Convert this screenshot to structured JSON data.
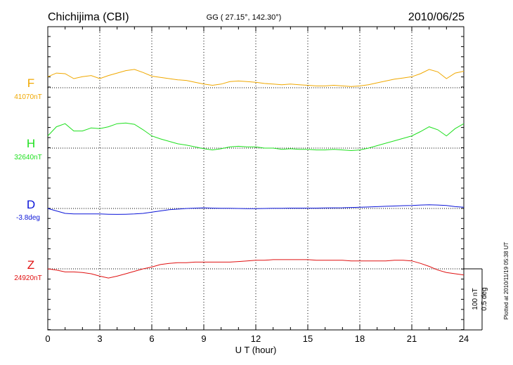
{
  "header": {
    "station": "Chichijima (CBI)",
    "coords": "GG ( 27.15°, 142.30°)",
    "date": "2010/06/25"
  },
  "plotted_note": "Plotted at 2010/11/19 05:38 UT",
  "scale_labels": [
    "100 nT",
    "0.5 deg"
  ],
  "chart_data": {
    "type": "line",
    "xlabel": "U T (hour)",
    "xlim": [
      0,
      24
    ],
    "xticks": [
      0,
      3,
      6,
      9,
      12,
      15,
      18,
      21,
      24
    ],
    "xtick_labels": [
      "0",
      "3",
      "6",
      "9",
      "12",
      "15",
      "18",
      "21",
      "24"
    ],
    "scale_bar": {
      "nT": 100,
      "deg": 0.5
    },
    "series": [
      {
        "name": "F",
        "baseline_label": "41070nT",
        "color": "#f0a800",
        "unit": "nT",
        "baseline": 41070,
        "x": [
          0,
          0.5,
          1,
          1.5,
          2,
          2.5,
          3,
          3.5,
          4,
          4.5,
          5,
          5.5,
          6,
          6.5,
          7,
          7.5,
          8,
          8.5,
          9,
          9.5,
          10,
          10.5,
          11,
          11.5,
          12,
          12.5,
          13,
          13.5,
          14,
          14.5,
          15,
          15.5,
          16,
          16.5,
          17,
          17.5,
          18,
          18.5,
          19,
          19.5,
          20,
          20.5,
          21,
          21.5,
          22,
          22.5,
          23,
          23.5,
          24
        ],
        "values": [
          41088,
          41094,
          41093,
          41085,
          41088,
          41090,
          41085,
          41090,
          41094,
          41098,
          41100,
          41095,
          41089,
          41087,
          41085,
          41083,
          41082,
          41079,
          41076,
          41074,
          41076,
          41080,
          41081,
          41080,
          41079,
          41077,
          41076,
          41075,
          41076,
          41075,
          41074,
          41073,
          41073,
          41074,
          41073,
          41072,
          41073,
          41075,
          41078,
          41081,
          41084,
          41086,
          41088,
          41093,
          41100,
          41096,
          41085,
          41094,
          41097
        ]
      },
      {
        "name": "H",
        "baseline_label": "32640nT",
        "color": "#1ee01e",
        "unit": "nT",
        "baseline": 32640,
        "x": [
          0,
          0.5,
          1,
          1.5,
          2,
          2.5,
          3,
          3.5,
          4,
          4.5,
          5,
          5.5,
          6,
          6.5,
          7,
          7.5,
          8,
          8.5,
          9,
          9.5,
          10,
          10.5,
          11,
          11.5,
          12,
          12.5,
          13,
          13.5,
          14,
          14.5,
          15,
          15.5,
          16,
          16.5,
          17,
          17.5,
          18,
          18.5,
          19,
          19.5,
          20,
          20.5,
          21,
          21.5,
          22,
          22.5,
          23,
          23.5,
          24
        ],
        "values": [
          32660,
          32675,
          32680,
          32668,
          32668,
          32673,
          32672,
          32675,
          32680,
          32681,
          32679,
          32670,
          32660,
          32655,
          32651,
          32647,
          32645,
          32642,
          32639,
          32637,
          32639,
          32642,
          32643,
          32642,
          32642,
          32640,
          32640,
          32638,
          32639,
          32638,
          32638,
          32637,
          32637,
          32638,
          32637,
          32636,
          32637,
          32640,
          32644,
          32648,
          32652,
          32656,
          32660,
          32667,
          32675,
          32670,
          32660,
          32672,
          32680
        ]
      },
      {
        "name": "D",
        "baseline_label": "-3.8deg",
        "color": "#0a14d8",
        "unit": "deg",
        "baseline": -3.8,
        "x": [
          0,
          0.5,
          1,
          1.5,
          2,
          2.5,
          3,
          3.5,
          4,
          4.5,
          5,
          5.5,
          6,
          6.5,
          7,
          7.5,
          8,
          8.5,
          9,
          9.5,
          10,
          10.5,
          11,
          11.5,
          12,
          12.5,
          13,
          13.5,
          14,
          14.5,
          15,
          15.5,
          16,
          16.5,
          17,
          17.5,
          18,
          18.5,
          19,
          19.5,
          20,
          20.5,
          21,
          21.5,
          22,
          22.5,
          23,
          23.5,
          24
        ],
        "values": [
          -3.8,
          -3.82,
          -3.84,
          -3.845,
          -3.845,
          -3.845,
          -3.845,
          -3.847,
          -3.848,
          -3.847,
          -3.845,
          -3.84,
          -3.83,
          -3.82,
          -3.81,
          -3.805,
          -3.8,
          -3.797,
          -3.795,
          -3.797,
          -3.798,
          -3.799,
          -3.8,
          -3.801,
          -3.801,
          -3.8,
          -3.799,
          -3.798,
          -3.797,
          -3.797,
          -3.797,
          -3.797,
          -3.796,
          -3.795,
          -3.794,
          -3.792,
          -3.79,
          -3.788,
          -3.785,
          -3.782,
          -3.78,
          -3.777,
          -3.775,
          -3.772,
          -3.77,
          -3.772,
          -3.775,
          -3.785,
          -3.79
        ]
      },
      {
        "name": "Z",
        "baseline_label": "24920nT",
        "color": "#e01010",
        "unit": "nT",
        "baseline": 24920,
        "x": [
          0,
          0.5,
          1,
          1.5,
          2,
          2.5,
          3,
          3.5,
          4,
          4.5,
          5,
          5.5,
          6,
          6.5,
          7,
          7.5,
          8,
          8.5,
          9,
          9.5,
          10,
          10.5,
          11,
          11.5,
          12,
          12.5,
          13,
          13.5,
          14,
          14.5,
          15,
          15.5,
          16,
          16.5,
          17,
          17.5,
          18,
          18.5,
          19,
          19.5,
          20,
          20.5,
          21,
          21.5,
          22,
          22.5,
          23,
          23.5,
          24
        ],
        "values": [
          24920,
          24918,
          24915,
          24915,
          24914,
          24912,
          24908,
          24905,
          24908,
          24912,
          24916,
          24920,
          24923,
          24927,
          24929,
          24930,
          24930,
          24931,
          24931,
          24931,
          24931,
          24931,
          24932,
          24933,
          24934,
          24934,
          24935,
          24935,
          24935,
          24935,
          24935,
          24934,
          24934,
          24934,
          24934,
          24933,
          24933,
          24933,
          24933,
          24933,
          24934,
          24934,
          24933,
          24929,
          24924,
          24918,
          24914,
          24912,
          24910
        ]
      }
    ]
  }
}
